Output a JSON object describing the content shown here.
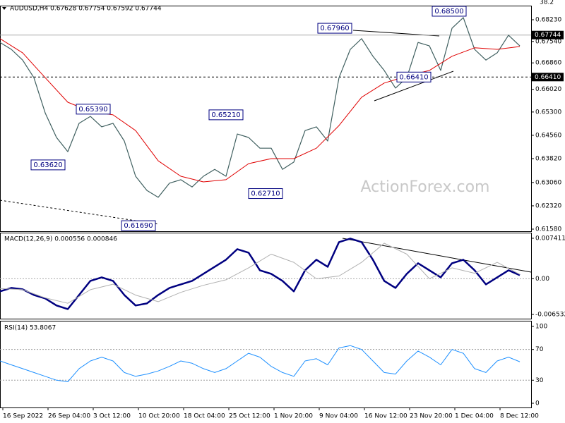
{
  "chart_data": [
    {
      "type": "line",
      "title": "AUDUSD,H4  0.67628 0.67754 0.67592 0.67744",
      "corner_text": "38.2",
      "watermark": "ActionForex.com",
      "xlim": [
        0,
        376
      ],
      "ylim": [
        0.61513,
        0.68678
      ],
      "yticks": [
        {
          "value": 0.6823,
          "label": "0.68230"
        },
        {
          "value": 0.6754,
          "label": "0.67540"
        },
        {
          "value": 0.6686,
          "label": "0.66860"
        },
        {
          "value": 0.6602,
          "label": "0.66020"
        },
        {
          "value": 0.653,
          "label": "0.65300"
        },
        {
          "value": 0.6456,
          "label": "0.64560"
        },
        {
          "value": 0.6382,
          "label": "0.63820"
        },
        {
          "value": 0.6306,
          "label": "0.63060"
        },
        {
          "value": 0.6232,
          "label": "0.62320"
        },
        {
          "value": 0.6158,
          "label": "0.61580"
        }
      ],
      "x": [
        0,
        8,
        16,
        24,
        32,
        40,
        48,
        56,
        64,
        72,
        80,
        88,
        96,
        104,
        112,
        120,
        128,
        136,
        144,
        152,
        160,
        168,
        176,
        184,
        192,
        200,
        208,
        216,
        224,
        232,
        240,
        248,
        256,
        264,
        272,
        280,
        288,
        296,
        304,
        312,
        320,
        328,
        336,
        344,
        352,
        360,
        368
      ],
      "series": [
        {
          "color": "#3f5f5f",
          "width": 1.2,
          "values": [
            0.6751,
            0.6729,
            0.6695,
            0.6639,
            0.6527,
            0.6449,
            0.6404,
            0.6494,
            0.6516,
            0.6483,
            0.6494,
            0.6438,
            0.6326,
            0.6281,
            0.6259,
            0.6304,
            0.6315,
            0.6292,
            0.6326,
            0.6348,
            0.6326,
            0.646,
            0.6449,
            0.6415,
            0.6415,
            0.6348,
            0.6371,
            0.6471,
            0.6483,
            0.6438,
            0.6639,
            0.6729,
            0.6763,
            0.6707,
            0.6662,
            0.6606,
            0.6639,
            0.6751,
            0.674,
            0.6662,
            0.6796,
            0.683,
            0.6729,
            0.6695,
            0.6718,
            0.6774,
            0.674
          ]
        },
        {
          "color": "#e00000",
          "width": 1,
          "x": [
            0,
            16,
            32,
            48,
            64,
            80,
            96,
            112,
            128,
            144,
            160,
            176,
            192,
            208,
            224,
            240,
            256,
            272,
            288,
            304,
            320,
            336,
            352,
            368
          ],
          "values": [
            0.6763,
            0.6718,
            0.6639,
            0.6561,
            0.6532,
            0.6521,
            0.6471,
            0.6375,
            0.6326,
            0.6308,
            0.6315,
            0.6366,
            0.6382,
            0.6382,
            0.6415,
            0.6487,
            0.6577,
            0.6622,
            0.6644,
            0.6662,
            0.6707,
            0.6734,
            0.6729,
            0.6738
          ]
        }
      ],
      "annotations": [
        {
          "text": "0.67960",
          "x": 237,
          "y": 0.6796
        },
        {
          "text": "0.68500",
          "x": 318,
          "y": 0.685
        },
        {
          "text": "0.66410",
          "x": 293,
          "y": 0.6641
        },
        {
          "text": "0.65390",
          "x": 66,
          "y": 0.6539
        },
        {
          "text": "0.65210",
          "x": 160,
          "y": 0.6521
        },
        {
          "text": "0.63620",
          "x": 34,
          "y": 0.6362
        },
        {
          "text": "0.62710",
          "x": 188,
          "y": 0.6271
        },
        {
          "text": "0.61690",
          "x": 98,
          "y": 0.6169
        }
      ],
      "hlines": [
        {
          "value": 0.6641,
          "label": "0.66410",
          "style": "dashed"
        },
        {
          "value": 0.67744,
          "label": "0.67744",
          "style": "solid"
        }
      ]
    },
    {
      "type": "line",
      "title": "MACD(12,26,9) 0.000556 0.000846",
      "xlim": [
        0,
        376
      ],
      "ylim": [
        -0.00731,
        0.00844
      ],
      "yticks": [
        0.007411,
        {
          "value": 0,
          "label": "0.00"
        },
        -0.006532
      ],
      "zero_line": true,
      "x": [
        0,
        8,
        16,
        24,
        32,
        40,
        48,
        56,
        64,
        72,
        80,
        88,
        96,
        104,
        112,
        120,
        128,
        136,
        144,
        152,
        160,
        168,
        176,
        184,
        192,
        200,
        208,
        216,
        224,
        232,
        240,
        248,
        256,
        264,
        272,
        280,
        288,
        296,
        304,
        312,
        320,
        328,
        336,
        344,
        352,
        360,
        368
      ],
      "series": [
        {
          "color": "#000080",
          "width": 2.5,
          "values": [
            -0.00232,
            -0.00168,
            -0.00194,
            -0.00297,
            -0.00361,
            -0.0049,
            -0.00555,
            -0.00297,
            -0.00039,
            0.00026,
            -0.00039,
            -0.00297,
            -0.0049,
            -0.00452,
            -0.00297,
            -0.00168,
            -0.00103,
            -0.00039,
            0.0009,
            0.00219,
            0.00348,
            0.00542,
            0.00478,
            0.00155,
            0.0009,
            -0.00039,
            -0.00232,
            0.00155,
            0.00348,
            0.00219,
            0.00671,
            0.00736,
            0.00671,
            0.00348,
            -0.00039,
            -0.00168,
            0.0009,
            0.00284,
            0.00155,
            0.00026,
            0.00284,
            0.00348,
            0.00155,
            -0.00103,
            0.00026,
            0.00155,
            0.00065
          ]
        },
        {
          "color": "#b0b0b0",
          "width": 1,
          "x": [
            0,
            16,
            32,
            48,
            64,
            80,
            96,
            112,
            128,
            144,
            160,
            176,
            192,
            208,
            224,
            240,
            256,
            272,
            288,
            304,
            320,
            336,
            352,
            368
          ],
          "values": [
            -0.0018,
            -0.002,
            -0.0035,
            -0.0045,
            -0.002,
            -0.001,
            -0.003,
            -0.0042,
            -0.0025,
            -0.0012,
            -0.0002,
            0.002,
            0.0045,
            0.003,
            0,
            0.0005,
            0.003,
            0.0065,
            0.0045,
            0,
            0.002,
            0.001,
            0.003,
            0.0008
          ]
        }
      ]
    },
    {
      "type": "line",
      "title": "RSI(14) 53.8067",
      "xlim": [
        0,
        376
      ],
      "ylim": [
        -5.5,
        106.4
      ],
      "yticks": [
        100,
        70,
        30,
        0
      ],
      "levels": [
        70,
        30
      ],
      "x": [
        0,
        8,
        16,
        24,
        32,
        40,
        48,
        56,
        64,
        72,
        80,
        88,
        96,
        104,
        112,
        120,
        128,
        136,
        144,
        152,
        160,
        168,
        176,
        184,
        192,
        200,
        208,
        216,
        224,
        232,
        240,
        248,
        256,
        264,
        272,
        280,
        288,
        296,
        304,
        312,
        320,
        328,
        336,
        344,
        352,
        360,
        368
      ],
      "series": [
        {
          "color": "#1e90ff",
          "width": 1,
          "values": [
            55,
            50,
            45,
            40,
            35,
            30,
            28,
            45,
            55,
            60,
            55,
            40,
            35,
            38,
            42,
            48,
            55,
            52,
            45,
            40,
            45,
            55,
            65,
            60,
            48,
            40,
            35,
            55,
            58,
            50,
            72,
            75,
            70,
            55,
            40,
            38,
            55,
            68,
            60,
            50,
            70,
            65,
            45,
            40,
            55,
            60,
            54
          ]
        }
      ],
      "xticks": [
        {
          "value": 2,
          "label": "16 Sep 2022"
        },
        {
          "value": 34,
          "label": "26 Sep 04:00"
        },
        {
          "value": 66,
          "label": "3 Oct 12:00"
        },
        {
          "value": 98,
          "label": "10 Oct 20:00"
        },
        {
          "value": 130,
          "label": "18 Oct 04:00"
        },
        {
          "value": 162,
          "label": "25 Oct 12:00"
        },
        {
          "value": 194,
          "label": "1 Nov 20:00"
        },
        {
          "value": 226,
          "label": "9 Nov 04:00"
        },
        {
          "value": 258,
          "label": "16 Nov 12:00"
        },
        {
          "value": 290,
          "label": "23 Nov 20:00"
        },
        {
          "value": 322,
          "label": "1 Dec 04:00"
        },
        {
          "value": 354,
          "label": "8 Dec 12:00"
        }
      ]
    }
  ]
}
